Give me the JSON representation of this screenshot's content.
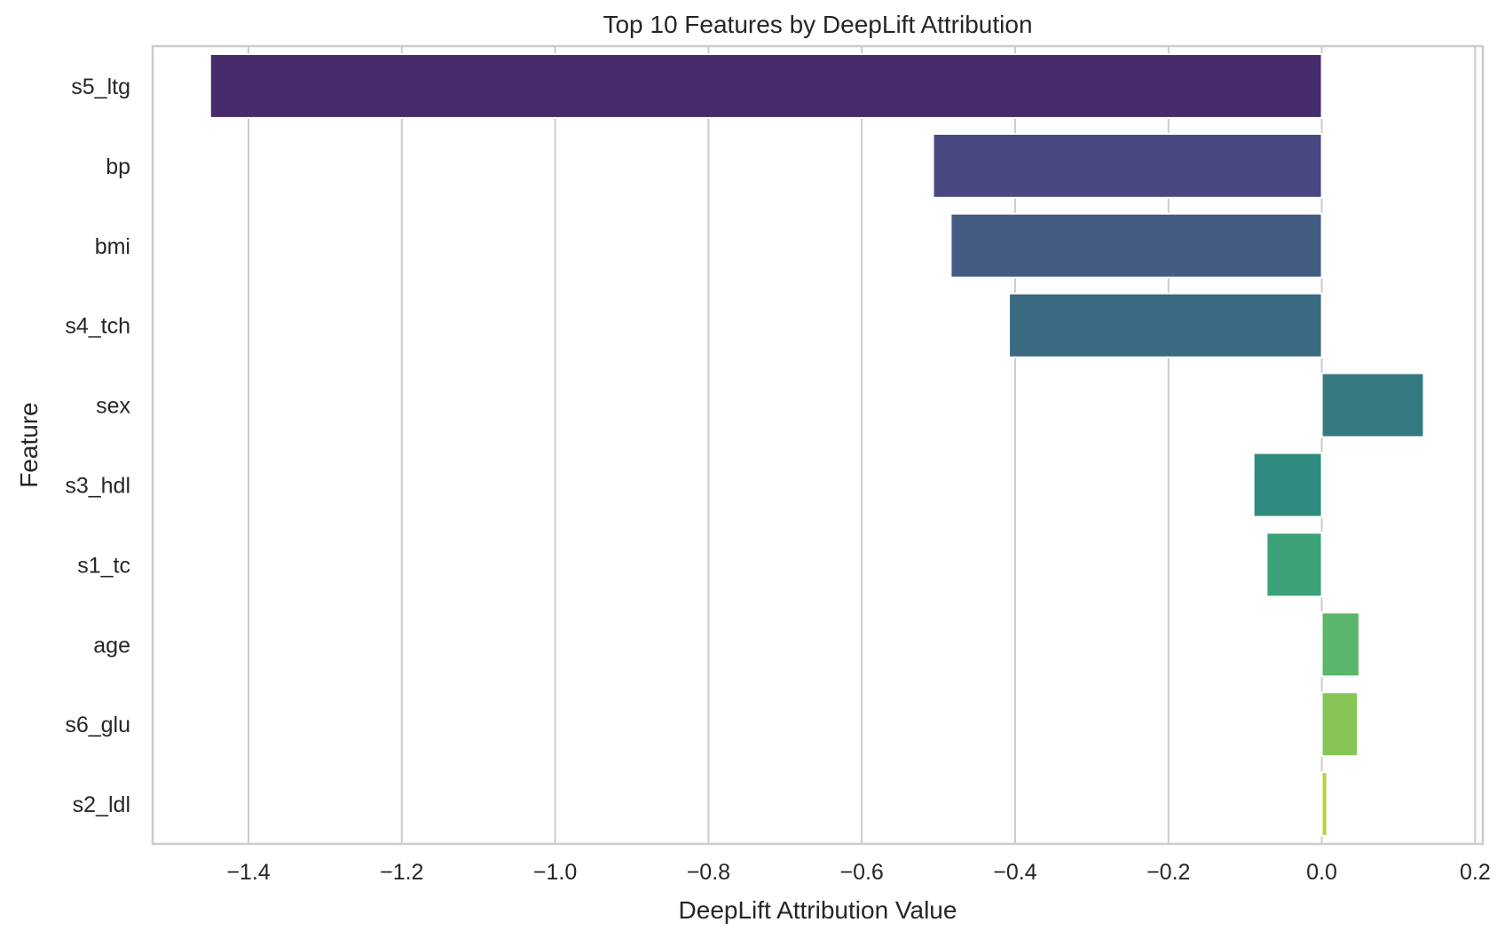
{
  "chart_data": {
    "type": "bar",
    "orientation": "horizontal",
    "title": "Top 10 Features by DeepLift Attribution",
    "xlabel": "DeepLift Attribution Value",
    "ylabel": "Feature",
    "xlim": [
      -1.525,
      0.21
    ],
    "xticks": [
      -1.4,
      -1.2,
      -1.0,
      -0.8,
      -0.6,
      -0.4,
      -0.2,
      0.0,
      0.2
    ],
    "xtick_labels": [
      "−1.4",
      "−1.2",
      "−1.0",
      "−0.8",
      "−0.6",
      "−0.4",
      "−0.2",
      "0.0",
      "0.2"
    ],
    "grid": "vertical",
    "categories": [
      "s5_ltg",
      "bp",
      "bmi",
      "s4_tch",
      "sex",
      "s3_hdl",
      "s1_tc",
      "age",
      "s6_glu",
      "s2_ldl"
    ],
    "values": [
      -1.45,
      -0.507,
      -0.484,
      -0.408,
      0.133,
      -0.089,
      -0.072,
      0.049,
      0.047,
      0.007
    ],
    "colors": [
      "#472c6b",
      "#4a4880",
      "#445c83",
      "#3a6a82",
      "#347a80",
      "#2f8b7e",
      "#3da178",
      "#5ab66b",
      "#88c557",
      "#b3d33d"
    ]
  }
}
